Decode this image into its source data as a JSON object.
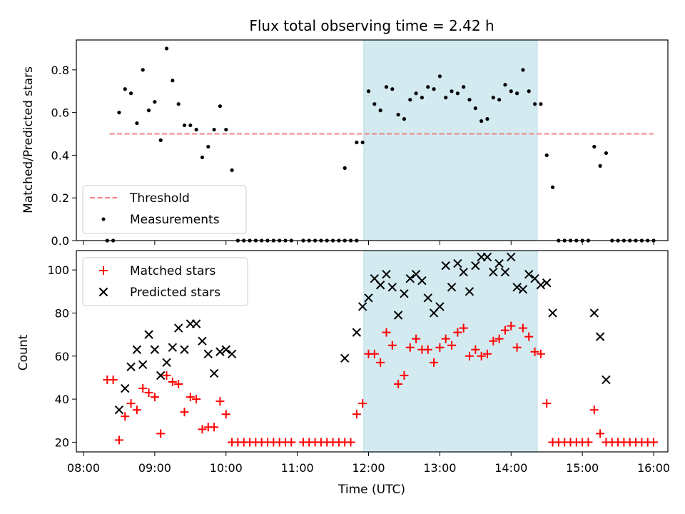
{
  "chart_data": [
    {
      "type": "scatter",
      "title": "Flux total observing time = 2.42 h",
      "xlabel": "",
      "ylabel": "Matched/Predicted stars",
      "xlim": [
        "07:54",
        "16:12"
      ],
      "ylim": [
        0,
        0.94
      ],
      "yticks": [
        0.0,
        0.2,
        0.4,
        0.6,
        0.8
      ],
      "ytick_labels": [
        "0.0",
        "0.2",
        "0.4",
        "0.6",
        "0.8"
      ],
      "legend": {
        "placement": "lower-left",
        "entries": [
          "Threshold",
          "Measurements"
        ]
      },
      "highlight_span": [
        "11:56",
        "14:22"
      ],
      "highlight_color": "#d3eaf0",
      "threshold": {
        "name": "Threshold",
        "y": 0.5,
        "x": [
          "08:22",
          "16:00"
        ],
        "color": "#f08080",
        "style": "dashed"
      },
      "series": [
        {
          "name": "Measurements",
          "marker": "dot",
          "color": "#000000",
          "points": [
            [
              "08:20",
              0.0
            ],
            [
              "08:25",
              0.0
            ],
            [
              "08:30",
              0.6
            ],
            [
              "08:35",
              0.71
            ],
            [
              "08:40",
              0.69
            ],
            [
              "08:45",
              0.55
            ],
            [
              "08:50",
              0.8
            ],
            [
              "08:55",
              0.61
            ],
            [
              "09:00",
              0.65
            ],
            [
              "09:05",
              0.47
            ],
            [
              "09:10",
              0.9
            ],
            [
              "09:15",
              0.75
            ],
            [
              "09:20",
              0.64
            ],
            [
              "09:25",
              0.54
            ],
            [
              "09:30",
              0.54
            ],
            [
              "09:35",
              0.52
            ],
            [
              "09:40",
              0.39
            ],
            [
              "09:45",
              0.44
            ],
            [
              "09:50",
              0.52
            ],
            [
              "09:55",
              0.63
            ],
            [
              "10:00",
              0.52
            ],
            [
              "10:05",
              0.33
            ],
            [
              "10:10",
              0.0
            ],
            [
              "10:15",
              0.0
            ],
            [
              "10:20",
              0.0
            ],
            [
              "10:25",
              0.0
            ],
            [
              "10:30",
              0.0
            ],
            [
              "10:35",
              0.0
            ],
            [
              "10:40",
              0.0
            ],
            [
              "10:45",
              0.0
            ],
            [
              "10:50",
              0.0
            ],
            [
              "10:55",
              0.0
            ],
            [
              "11:05",
              0.0
            ],
            [
              "11:10",
              0.0
            ],
            [
              "11:15",
              0.0
            ],
            [
              "11:20",
              0.0
            ],
            [
              "11:25",
              0.0
            ],
            [
              "11:30",
              0.0
            ],
            [
              "11:35",
              0.0
            ],
            [
              "11:40",
              0.0
            ],
            [
              "11:40",
              0.34
            ],
            [
              "11:45",
              0.0
            ],
            [
              "11:50",
              0.0
            ],
            [
              "11:50",
              0.46
            ],
            [
              "11:55",
              0.46
            ],
            [
              "12:00",
              0.7
            ],
            [
              "12:05",
              0.64
            ],
            [
              "12:10",
              0.61
            ],
            [
              "12:15",
              0.72
            ],
            [
              "12:20",
              0.71
            ],
            [
              "12:25",
              0.59
            ],
            [
              "12:30",
              0.57
            ],
            [
              "12:35",
              0.66
            ],
            [
              "12:40",
              0.69
            ],
            [
              "12:45",
              0.67
            ],
            [
              "12:50",
              0.72
            ],
            [
              "12:55",
              0.71
            ],
            [
              "13:00",
              0.77
            ],
            [
              "13:05",
              0.67
            ],
            [
              "13:10",
              0.7
            ],
            [
              "13:15",
              0.69
            ],
            [
              "13:20",
              0.72
            ],
            [
              "13:25",
              0.66
            ],
            [
              "13:30",
              0.62
            ],
            [
              "13:35",
              0.56
            ],
            [
              "13:40",
              0.57
            ],
            [
              "13:45",
              0.67
            ],
            [
              "13:50",
              0.66
            ],
            [
              "13:55",
              0.73
            ],
            [
              "14:00",
              0.7
            ],
            [
              "14:05",
              0.69
            ],
            [
              "14:10",
              0.8
            ],
            [
              "14:15",
              0.7
            ],
            [
              "14:20",
              0.64
            ],
            [
              "14:25",
              0.64
            ],
            [
              "14:30",
              0.4
            ],
            [
              "14:35",
              0.25
            ],
            [
              "14:40",
              0.0
            ],
            [
              "14:45",
              0.0
            ],
            [
              "14:50",
              0.0
            ],
            [
              "14:55",
              0.0
            ],
            [
              "15:00",
              0.0
            ],
            [
              "15:05",
              0.0
            ],
            [
              "15:10",
              0.44
            ],
            [
              "15:15",
              0.35
            ],
            [
              "15:20",
              0.41
            ],
            [
              "15:25",
              0.0
            ],
            [
              "15:30",
              0.0
            ],
            [
              "15:35",
              0.0
            ],
            [
              "15:40",
              0.0
            ],
            [
              "15:45",
              0.0
            ],
            [
              "15:50",
              0.0
            ],
            [
              "15:55",
              0.0
            ],
            [
              "16:00",
              0.0
            ]
          ]
        }
      ]
    },
    {
      "type": "scatter",
      "title": "",
      "xlabel": "Time (UTC)",
      "ylabel": "Count",
      "xlim": [
        "07:54",
        "16:12"
      ],
      "ylim": [
        15.5,
        109
      ],
      "xticks": [
        "08:00",
        "09:00",
        "10:00",
        "11:00",
        "12:00",
        "13:00",
        "14:00",
        "15:00",
        "16:00"
      ],
      "yticks": [
        20,
        40,
        60,
        80,
        100
      ],
      "ytick_labels": [
        "20",
        "40",
        "60",
        "80",
        "100"
      ],
      "legend": {
        "placement": "top-left",
        "entries": [
          "Matched stars",
          "Predicted stars"
        ]
      },
      "highlight_span": [
        "11:56",
        "14:22"
      ],
      "highlight_color": "#d3eaf0",
      "series": [
        {
          "name": "Matched stars",
          "marker": "plus",
          "color": "#ff0000",
          "points": [
            [
              "08:20",
              49
            ],
            [
              "08:25",
              49
            ],
            [
              "08:30",
              21
            ],
            [
              "08:35",
              32
            ],
            [
              "08:40",
              38
            ],
            [
              "08:45",
              35
            ],
            [
              "08:50",
              45
            ],
            [
              "08:55",
              43
            ],
            [
              "09:00",
              41
            ],
            [
              "09:05",
              24
            ],
            [
              "09:10",
              51
            ],
            [
              "09:15",
              48
            ],
            [
              "09:20",
              47
            ],
            [
              "09:25",
              34
            ],
            [
              "09:30",
              41
            ],
            [
              "09:35",
              40
            ],
            [
              "09:40",
              26
            ],
            [
              "09:45",
              27
            ],
            [
              "09:50",
              27
            ],
            [
              "09:55",
              39
            ],
            [
              "10:00",
              33
            ],
            [
              "10:05",
              20
            ],
            [
              "10:10",
              20
            ],
            [
              "10:15",
              20
            ],
            [
              "10:20",
              20
            ],
            [
              "10:25",
              20
            ],
            [
              "10:30",
              20
            ],
            [
              "10:35",
              20
            ],
            [
              "10:40",
              20
            ],
            [
              "10:45",
              20
            ],
            [
              "10:50",
              20
            ],
            [
              "10:55",
              20
            ],
            [
              "11:05",
              20
            ],
            [
              "11:10",
              20
            ],
            [
              "11:15",
              20
            ],
            [
              "11:20",
              20
            ],
            [
              "11:25",
              20
            ],
            [
              "11:30",
              20
            ],
            [
              "11:35",
              20
            ],
            [
              "11:40",
              20
            ],
            [
              "11:45",
              20
            ],
            [
              "11:50",
              33
            ],
            [
              "11:55",
              38
            ],
            [
              "12:00",
              61
            ],
            [
              "12:05",
              61
            ],
            [
              "12:10",
              57
            ],
            [
              "12:15",
              71
            ],
            [
              "12:20",
              65
            ],
            [
              "12:25",
              47
            ],
            [
              "12:30",
              51
            ],
            [
              "12:35",
              64
            ],
            [
              "12:40",
              68
            ],
            [
              "12:45",
              63
            ],
            [
              "12:50",
              63
            ],
            [
              "12:55",
              57
            ],
            [
              "13:00",
              64
            ],
            [
              "13:05",
              68
            ],
            [
              "13:10",
              65
            ],
            [
              "13:15",
              71
            ],
            [
              "13:20",
              73
            ],
            [
              "13:25",
              60
            ],
            [
              "13:30",
              63
            ],
            [
              "13:35",
              60
            ],
            [
              "13:40",
              61
            ],
            [
              "13:45",
              67
            ],
            [
              "13:50",
              68
            ],
            [
              "13:55",
              72
            ],
            [
              "14:00",
              74
            ],
            [
              "14:05",
              64
            ],
            [
              "14:10",
              73
            ],
            [
              "14:15",
              69
            ],
            [
              "14:20",
              62
            ],
            [
              "14:25",
              61
            ],
            [
              "14:30",
              38
            ],
            [
              "14:35",
              20
            ],
            [
              "14:40",
              20
            ],
            [
              "14:45",
              20
            ],
            [
              "14:50",
              20
            ],
            [
              "14:55",
              20
            ],
            [
              "15:00",
              20
            ],
            [
              "15:05",
              20
            ],
            [
              "15:10",
              35
            ],
            [
              "15:15",
              24
            ],
            [
              "15:20",
              20
            ],
            [
              "15:25",
              20
            ],
            [
              "15:30",
              20
            ],
            [
              "15:35",
              20
            ],
            [
              "15:40",
              20
            ],
            [
              "15:45",
              20
            ],
            [
              "15:50",
              20
            ],
            [
              "15:55",
              20
            ],
            [
              "16:00",
              20
            ]
          ]
        },
        {
          "name": "Predicted stars",
          "marker": "x",
          "color": "#000000",
          "points": [
            [
              "08:30",
              35
            ],
            [
              "08:35",
              45
            ],
            [
              "08:40",
              55
            ],
            [
              "08:45",
              63
            ],
            [
              "08:50",
              56
            ],
            [
              "08:55",
              70
            ],
            [
              "09:00",
              63
            ],
            [
              "09:05",
              51
            ],
            [
              "09:10",
              57
            ],
            [
              "09:15",
              64
            ],
            [
              "09:20",
              73
            ],
            [
              "09:25",
              63
            ],
            [
              "09:30",
              75
            ],
            [
              "09:35",
              75
            ],
            [
              "09:40",
              67
            ],
            [
              "09:45",
              61
            ],
            [
              "09:50",
              52
            ],
            [
              "09:55",
              62
            ],
            [
              "10:00",
              63
            ],
            [
              "10:05",
              61
            ],
            [
              "11:40",
              59
            ],
            [
              "11:50",
              71
            ],
            [
              "11:55",
              83
            ],
            [
              "12:00",
              87
            ],
            [
              "12:05",
              96
            ],
            [
              "12:10",
              93
            ],
            [
              "12:15",
              98
            ],
            [
              "12:20",
              92
            ],
            [
              "12:25",
              79
            ],
            [
              "12:30",
              89
            ],
            [
              "12:35",
              96
            ],
            [
              "12:40",
              98
            ],
            [
              "12:45",
              95
            ],
            [
              "12:50",
              87
            ],
            [
              "12:55",
              80
            ],
            [
              "13:00",
              83
            ],
            [
              "13:05",
              102
            ],
            [
              "13:10",
              92
            ],
            [
              "13:15",
              103
            ],
            [
              "13:20",
              99
            ],
            [
              "13:25",
              90
            ],
            [
              "13:30",
              102
            ],
            [
              "13:35",
              106
            ],
            [
              "13:40",
              106
            ],
            [
              "13:45",
              99
            ],
            [
              "13:50",
              103
            ],
            [
              "13:55",
              99
            ],
            [
              "14:00",
              106
            ],
            [
              "14:05",
              92
            ],
            [
              "14:10",
              91
            ],
            [
              "14:15",
              98
            ],
            [
              "14:20",
              96
            ],
            [
              "14:25",
              93
            ],
            [
              "14:30",
              94
            ],
            [
              "14:35",
              80
            ],
            [
              "15:10",
              80
            ],
            [
              "15:15",
              69
            ],
            [
              "15:20",
              49
            ]
          ]
        }
      ]
    }
  ]
}
